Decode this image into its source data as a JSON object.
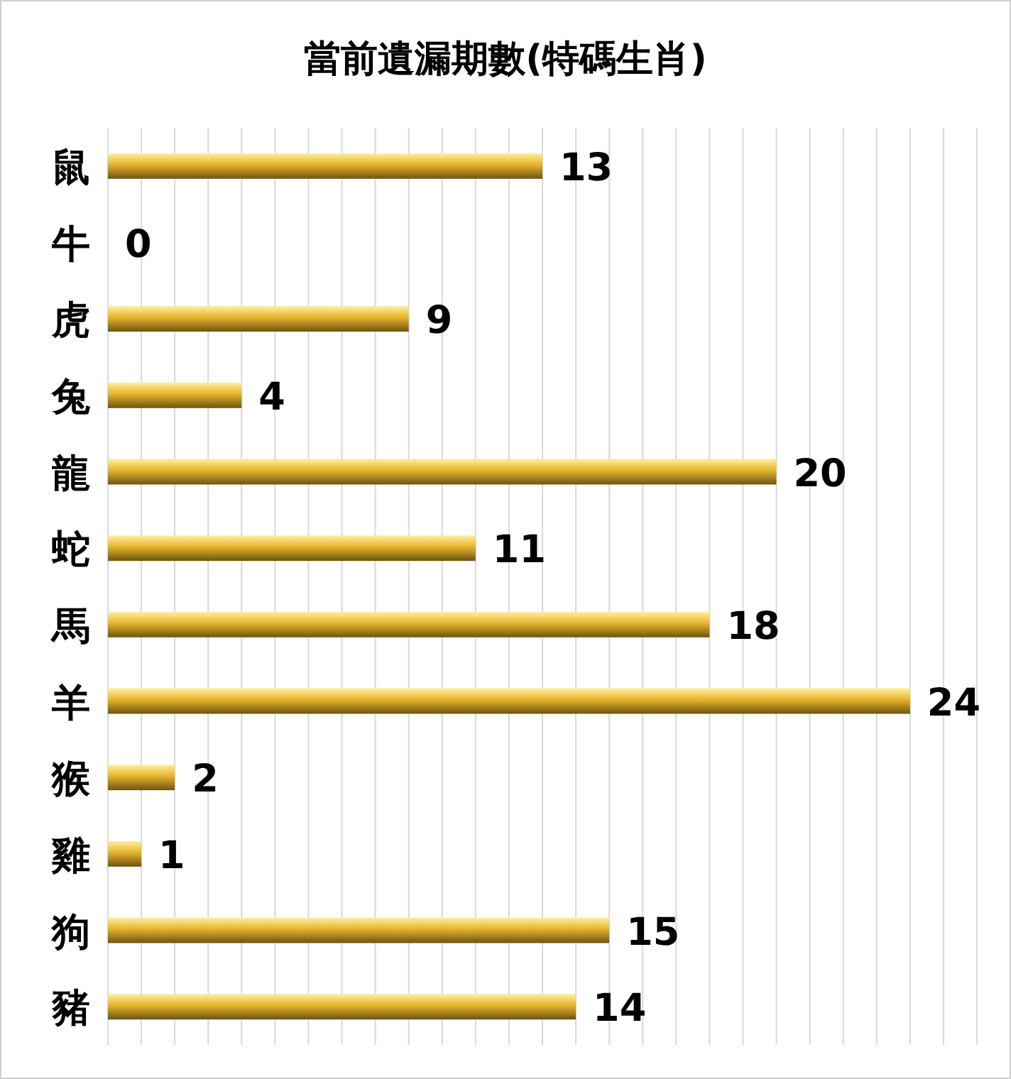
{
  "chart_data": {
    "type": "bar",
    "orientation": "horizontal",
    "title": "當前遺漏期數(特碼生肖)",
    "categories": [
      "鼠",
      "牛",
      "虎",
      "兔",
      "龍",
      "蛇",
      "馬",
      "羊",
      "猴",
      "雞",
      "狗",
      "豬"
    ],
    "values": [
      13,
      0,
      9,
      4,
      20,
      11,
      18,
      24,
      2,
      1,
      15,
      14
    ],
    "color": "#e6b42c",
    "data_labels": true,
    "grid": "x",
    "tick_labels": "y",
    "xlim": [
      0,
      26
    ],
    "xticks": [
      {
        "value": 0,
        "label": null
      },
      {
        "value": 1,
        "label": null
      },
      {
        "value": 2,
        "label": null
      },
      {
        "value": 3,
        "label": null
      },
      {
        "value": 4,
        "label": null
      },
      {
        "value": 5,
        "label": null
      },
      {
        "value": 6,
        "label": null
      },
      {
        "value": 7,
        "label": null
      },
      {
        "value": 8,
        "label": null
      },
      {
        "value": 9,
        "label": null
      },
      {
        "value": 10,
        "label": null
      },
      {
        "value": 11,
        "label": null
      },
      {
        "value": 12,
        "label": null
      },
      {
        "value": 13,
        "label": null
      },
      {
        "value": 14,
        "label": null
      },
      {
        "value": 15,
        "label": null
      },
      {
        "value": 16,
        "label": null
      },
      {
        "value": 17,
        "label": null
      },
      {
        "value": 18,
        "label": null
      },
      {
        "value": 19,
        "label": null
      },
      {
        "value": 20,
        "label": null
      },
      {
        "value": 21,
        "label": null
      },
      {
        "value": 22,
        "label": null
      },
      {
        "value": 23,
        "label": null
      },
      {
        "value": 24,
        "label": null
      },
      {
        "value": 25,
        "label": null
      },
      {
        "value": 26,
        "label": null
      }
    ]
  }
}
